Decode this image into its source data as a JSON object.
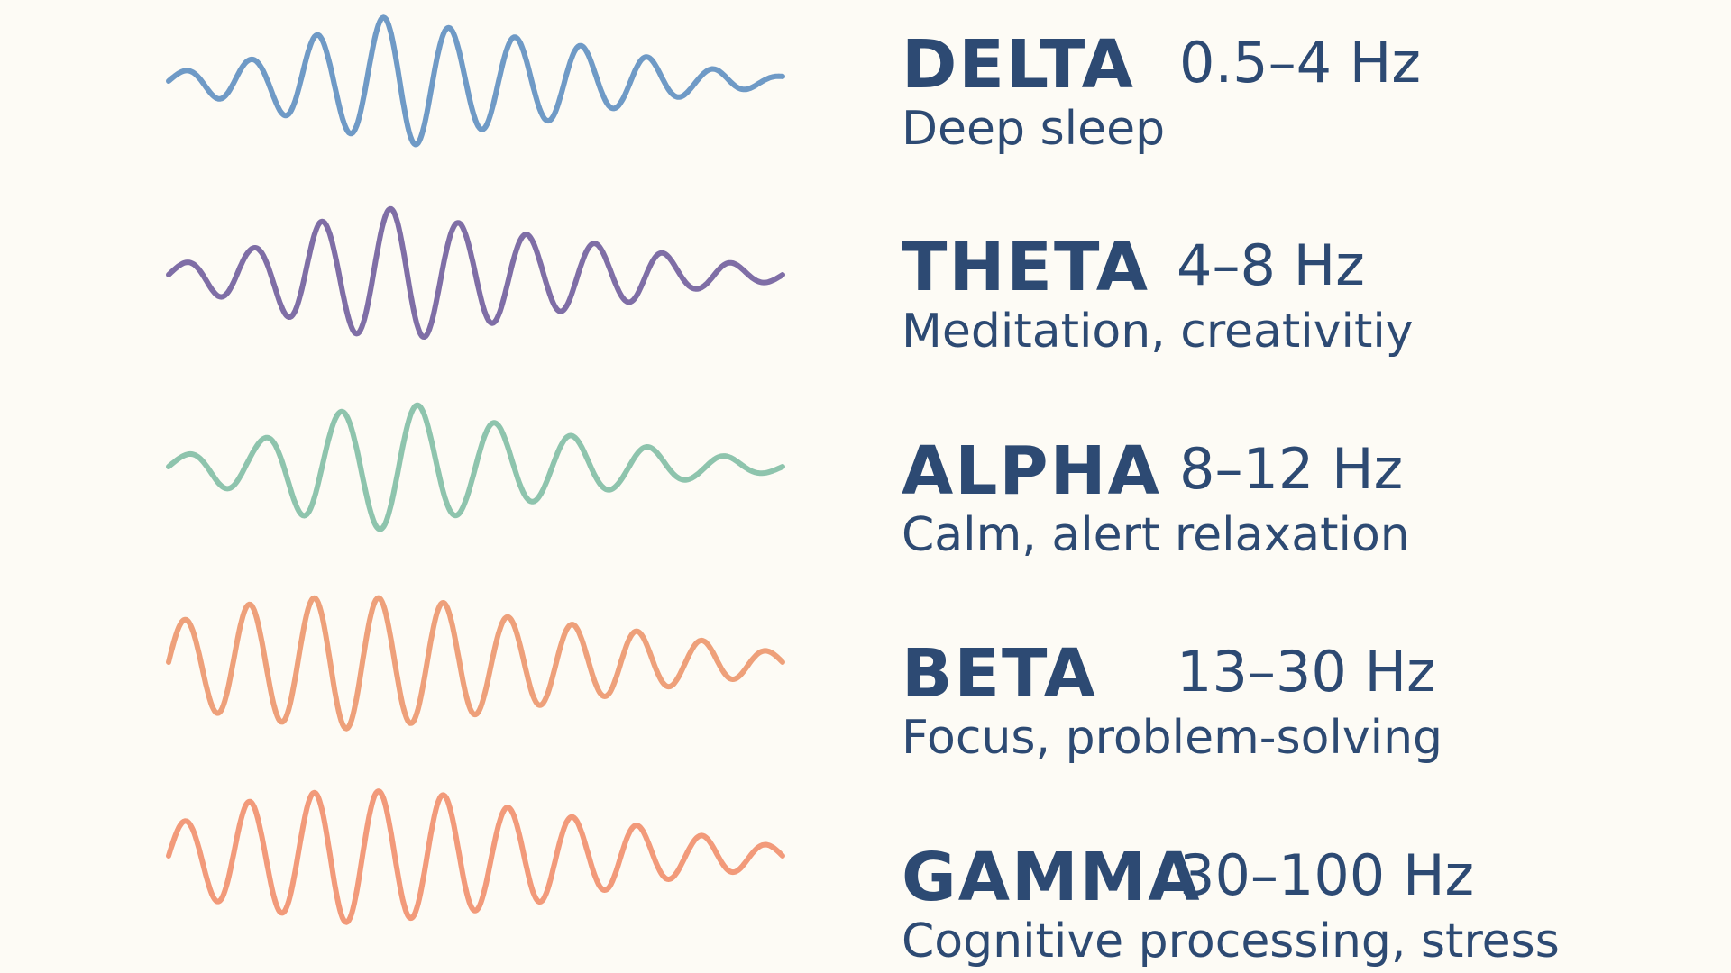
{
  "bands": [
    {
      "name": "DELTA",
      "range": "0.5–4 Hz",
      "description": "Deep sleep",
      "color": "#6f9ac6",
      "wave_amplitudes": [
        0.13,
        0.31,
        0.68,
        0.96,
        0.71,
        0.58,
        0.38,
        0.18,
        0.07
      ],
      "wave_cycles": 9.3
    },
    {
      "name": "THETA",
      "range": "4–8 Hz",
      "description": "Meditation, creativitiy",
      "color": "#7f6ea6",
      "wave_amplitudes": [
        0.15,
        0.38,
        0.78,
        0.97,
        0.73,
        0.54,
        0.4,
        0.2,
        0.1
      ],
      "wave_cycles": 9.0
    },
    {
      "name": "ALPHA",
      "range": "8–12 Hz",
      "description": "Calm, alert relaxation",
      "color": "#8ec4ad",
      "wave_amplitudes": [
        0.15,
        0.35,
        0.78,
        0.94,
        0.67,
        0.48,
        0.31,
        0.17,
        0.08
      ],
      "wave_cycles": 8.0
    },
    {
      "name": "BETA",
      "range": "13–30 Hz",
      "description": "Focus, problem-solving",
      "color": "#eea07a",
      "wave_amplitudes": [
        0.6,
        0.85,
        0.97,
        0.88,
        0.65,
        0.5,
        0.32,
        0.15
      ],
      "wave_cycles": 9.5
    },
    {
      "name": "GAMMA",
      "range": "30–100 Hz",
      "description": "Cognitive processing, stress",
      "color": "#f29a7a",
      "wave_amplitudes": [
        0.48,
        0.8,
        0.97,
        0.9,
        0.7,
        0.5,
        0.3,
        0.15
      ],
      "wave_cycles": 9.5
    }
  ]
}
